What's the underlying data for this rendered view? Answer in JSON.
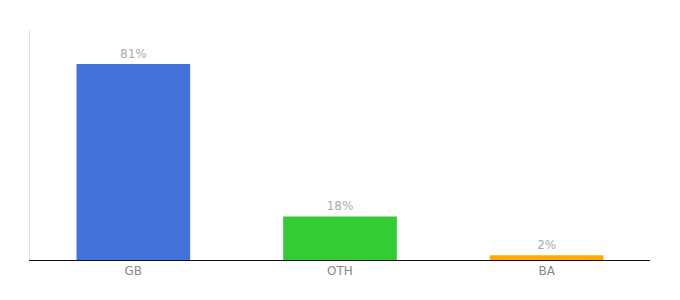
{
  "chart_data": {
    "type": "bar",
    "categories": [
      "GB",
      "OTH",
      "BA"
    ],
    "values": [
      81,
      18,
      2
    ],
    "value_labels": [
      "81%",
      "18%",
      "2%"
    ],
    "colors": [
      "#4472db",
      "#33cc33",
      "#ffaa00"
    ],
    "data_labels": true,
    "ylim": [
      0,
      95
    ],
    "tick_labels": "x",
    "grid": false
  }
}
